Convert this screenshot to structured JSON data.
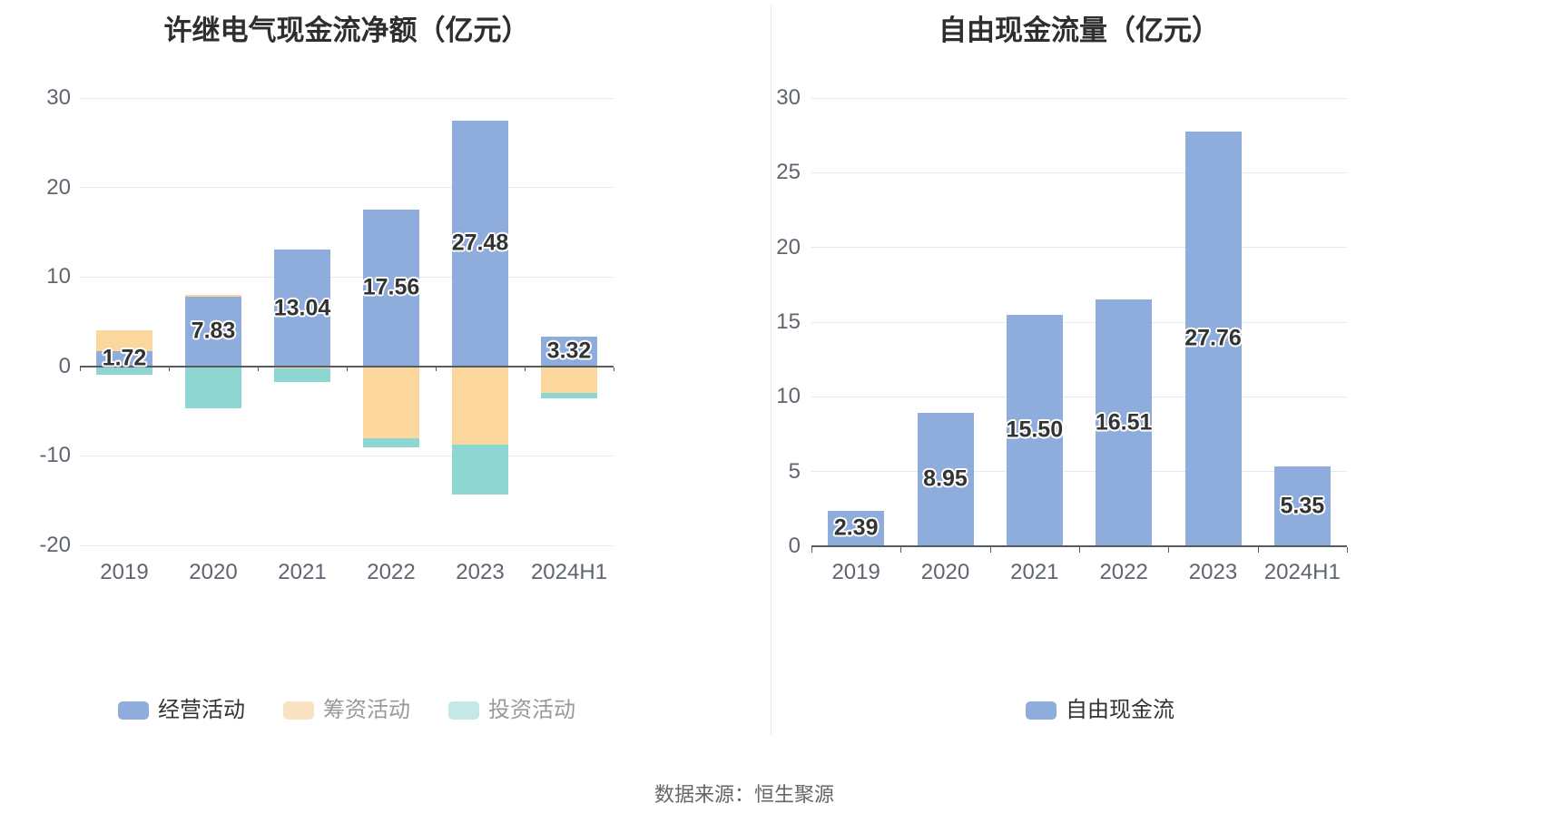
{
  "source_note": "数据来源：恒生聚源",
  "chart_data": [
    {
      "type": "bar",
      "stacked": true,
      "title": "许继电气现金流净额（亿元）",
      "categories": [
        "2019",
        "2020",
        "2021",
        "2022",
        "2023",
        "2024H1"
      ],
      "ylim": [
        -20,
        30
      ],
      "y_ticks": [
        30,
        20,
        10,
        0,
        -10,
        -20
      ],
      "grid": true,
      "legend_position": "bottom",
      "series": [
        {
          "key": "operating",
          "name": "经营活动",
          "color": "#8EACDC",
          "values": [
            1.72,
            7.83,
            13.04,
            17.56,
            27.48,
            3.32
          ],
          "labels": [
            "1.72",
            "7.83",
            "13.04",
            "17.56",
            "27.48",
            "3.32"
          ]
        },
        {
          "key": "financing",
          "name": "筹资活动",
          "color": "#FBD79E",
          "values": [
            2.28,
            0.12,
            -0.2,
            -8.0,
            -8.7,
            -2.95
          ]
        },
        {
          "key": "investing",
          "name": "投资活动",
          "color": "#8DD6D1",
          "values": [
            -0.95,
            -4.7,
            -1.5,
            -1.05,
            -5.6,
            -0.65
          ]
        }
      ],
      "legend": [
        {
          "label": "经营活动",
          "swatch": "#8EACDC",
          "text_color": "#333333"
        },
        {
          "label": "筹资活动",
          "swatch": "#FAE3C1",
          "text_color": "#999999"
        },
        {
          "label": "投资活动",
          "swatch": "#C5E8E6",
          "text_color": "#999999"
        }
      ]
    },
    {
      "type": "bar",
      "stacked": false,
      "title": "自由现金流量（亿元）",
      "categories": [
        "2019",
        "2020",
        "2021",
        "2022",
        "2023",
        "2024H1"
      ],
      "ylim": [
        0,
        30
      ],
      "y_ticks": [
        30,
        25,
        20,
        15,
        10,
        5,
        0
      ],
      "grid": true,
      "legend_position": "bottom",
      "series": [
        {
          "key": "fcf",
          "name": "自由现金流",
          "color": "#8EACDC",
          "values": [
            2.39,
            8.95,
            15.5,
            16.51,
            27.76,
            5.35
          ],
          "labels": [
            "2.39",
            "8.95",
            "15.50",
            "16.51",
            "27.76",
            "5.35"
          ]
        }
      ],
      "legend": [
        {
          "label": "自由现金流",
          "swatch": "#8EACDC",
          "text_color": "#333333"
        }
      ]
    }
  ]
}
